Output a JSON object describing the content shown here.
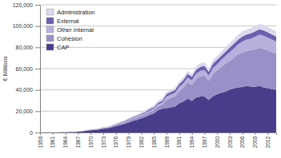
{
  "chart_data": {
    "type": "area",
    "stacked": true,
    "grid": true,
    "legend": "upper left",
    "y_label": "€ Millions",
    "x": [
      1958,
      1959,
      1960,
      1961,
      1962,
      1963,
      1964,
      1965,
      1966,
      1967,
      1968,
      1969,
      1970,
      1971,
      1972,
      1973,
      1974,
      1975,
      1976,
      1977,
      1978,
      1979,
      1980,
      1981,
      1982,
      1983,
      1984,
      1985,
      1986,
      1987,
      1988,
      1989,
      1990,
      1991,
      1992,
      1993,
      1994,
      1995,
      1996,
      1997,
      1998,
      1999,
      2000,
      2001,
      2002,
      2003,
      2004,
      2005,
      2006,
      2007,
      2008,
      2009,
      2010,
      2011,
      2012,
      2013,
      2014
    ],
    "xlim": [
      1958,
      2014
    ],
    "xticks": [
      1958,
      1961,
      1964,
      1967,
      1970,
      1973,
      1976,
      1979,
      1982,
      1985,
      1988,
      1991,
      1994,
      1997,
      2000,
      2003,
      2006,
      2009,
      2012
    ],
    "ylim": [
      0,
      120000
    ],
    "yticks": [
      0,
      {
        "value": 20000,
        "label": "20,000"
      },
      {
        "value": 40000,
        "label": "40,000"
      },
      {
        "value": 60000,
        "label": "60,000"
      },
      {
        "value": 80000,
        "label": "80,000"
      },
      {
        "value": 100000,
        "label": "100,000"
      },
      {
        "value": 120000,
        "label": "120,000"
      }
    ],
    "series": [
      {
        "name": "CAP",
        "color": "#483d8b",
        "values": [
          15,
          22,
          30,
          45,
          75,
          150,
          225,
          300,
          450,
          675,
          1050,
          1540,
          2100,
          2310,
          2800,
          3500,
          3850,
          4900,
          5950,
          7000,
          8050,
          9450,
          10850,
          11900,
          13300,
          14700,
          16450,
          17850,
          21000,
          22400,
          22800,
          23600,
          24360,
          27360,
          29120,
          31900,
          29700,
          32860,
          33800,
          33660,
          30600,
          34000,
          36000,
          37240,
          38400,
          40320,
          41360,
          42320,
          42750,
          43650,
          43120,
          43000,
          43860,
          42420,
          41580,
          40740,
          39900
        ]
      },
      {
        "name": "Cohesion",
        "color": "#9a90c8",
        "values": [
          1,
          2,
          2,
          3,
          5,
          10,
          15,
          20,
          30,
          45,
          180,
          264,
          360,
          396,
          480,
          600,
          660,
          840,
          1020,
          1200,
          1380,
          1620,
          1860,
          2040,
          2280,
          2520,
          2820,
          3060,
          3600,
          3840,
          7980,
          8800,
          9660,
          11520,
          13000,
          15080,
          14850,
          17360,
          18850,
          19800,
          18000,
          21080,
          22320,
          24320,
          26400,
          26880,
          29040,
          31280,
          32300,
          32980,
          34300,
          35000,
          35700,
          36360,
          35640,
          34920,
          34200
        ]
      },
      {
        "name": "Other Internal",
        "color": "#b8b0dc",
        "values": [
          1,
          1,
          2,
          3,
          5,
          10,
          15,
          20,
          30,
          45,
          90,
          132,
          180,
          198,
          240,
          300,
          330,
          420,
          510,
          600,
          690,
          810,
          930,
          1020,
          1140,
          1260,
          1410,
          1530,
          1800,
          1920,
          3040,
          3200,
          3360,
          3840,
          4160,
          4640,
          4400,
          4960,
          5200,
          5280,
          4800,
          5440,
          5760,
          6840,
          7200,
          8400,
          8800,
          9200,
          10450,
          10670,
          10780,
          12000,
          12240,
          12120,
          11880,
          11640,
          11400
        ]
      },
      {
        "name": "External",
        "color": "#6b5fae",
        "values": [
          1,
          1,
          1,
          2,
          3,
          6,
          9,
          12,
          18,
          27,
          75,
          110,
          150,
          165,
          200,
          250,
          275,
          350,
          425,
          500,
          575,
          675,
          775,
          850,
          950,
          1050,
          1175,
          1275,
          1500,
          1600,
          2280,
          2400,
          2520,
          2880,
          3120,
          3480,
          3300,
          3720,
          3900,
          3960,
          3600,
          4080,
          4320,
          3800,
          4000,
          4200,
          4400,
          4600,
          4750,
          4850,
          4900,
          5000,
          5100,
          5050,
          4950,
          4850,
          4750
        ]
      },
      {
        "name": "Administration",
        "color": "#dcd8ee",
        "values": [
          2,
          4,
          5,
          7,
          12,
          24,
          36,
          48,
          72,
          108,
          105,
          154,
          210,
          231,
          280,
          350,
          385,
          490,
          595,
          700,
          805,
          945,
          1085,
          1190,
          1330,
          1470,
          1645,
          1785,
          2100,
          2240,
          1900,
          2000,
          2100,
          2400,
          2600,
          2900,
          2750,
          3100,
          3250,
          3300,
          3000,
          3400,
          3600,
          3800,
          4000,
          4200,
          4400,
          4600,
          4750,
          4850,
          4900,
          5000,
          5100,
          5050,
          4950,
          4850,
          4750
        ]
      }
    ]
  }
}
